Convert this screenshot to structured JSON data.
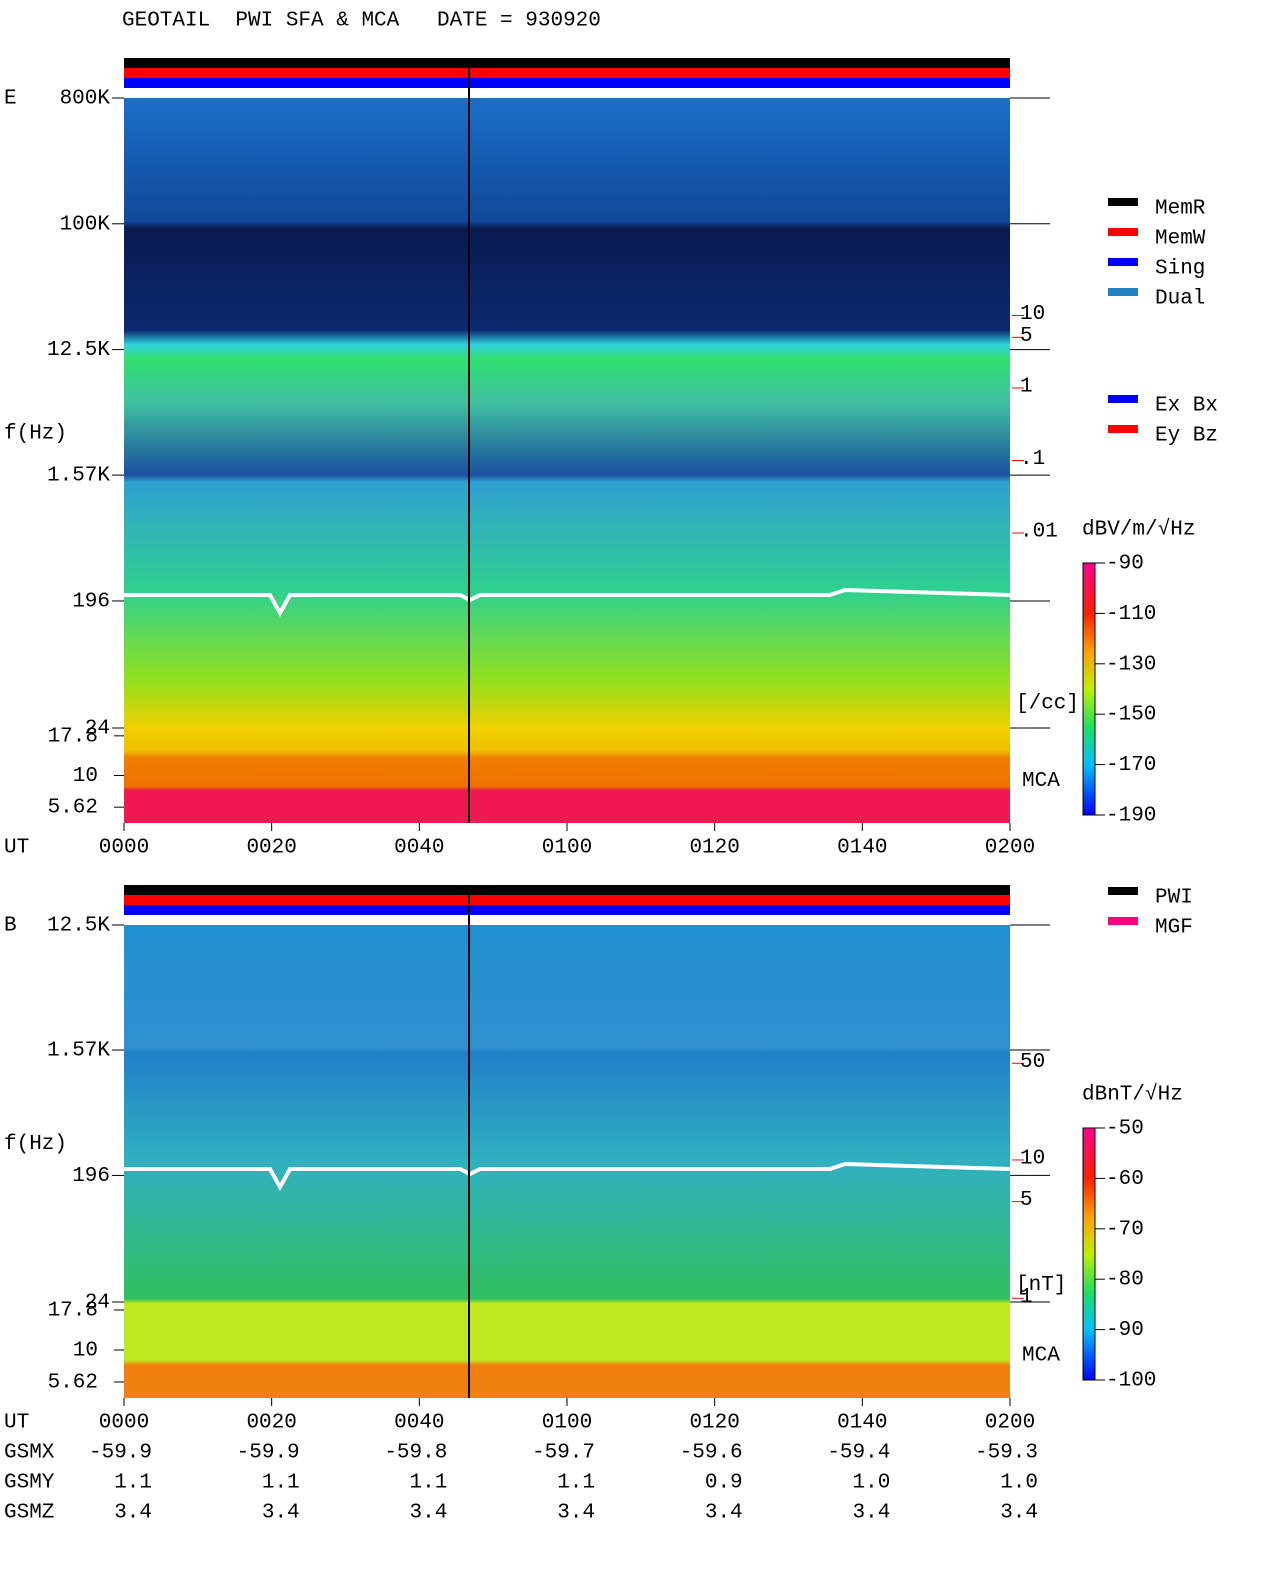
{
  "title": "GEOTAIL  PWI SFA & MCA   DATE = 930920",
  "chart_data": [
    {
      "type": "spectrogram",
      "panel_label": "E",
      "y_label": "f(Hz)",
      "x_label": "UT",
      "mca_label": "MCA",
      "xlim": [
        0,
        120
      ],
      "xticks": [
        {
          "value": 0,
          "label": "0000"
        },
        {
          "value": 20,
          "label": "0020"
        },
        {
          "value": 40,
          "label": "0040"
        },
        {
          "value": 60,
          "label": "0100"
        },
        {
          "value": 80,
          "label": "0120"
        },
        {
          "value": 100,
          "label": "0140"
        },
        {
          "value": 120,
          "label": "0200"
        }
      ],
      "log_y": true,
      "ylim": [
        24,
        800000
      ],
      "yticks": [
        {
          "value": 800000,
          "label": "800K"
        },
        {
          "value": 100000,
          "label": "100K"
        },
        {
          "value": 12500,
          "label": "12.5K"
        },
        {
          "value": 1570,
          "label": "1.57K"
        },
        196,
        24
      ],
      "mca_yticks": [
        17.8,
        10,
        5.62
      ],
      "y2lim": [
        1e-06,
        10000
      ],
      "y2_label": "[/cc]",
      "y2_color": "#ff0000",
      "y2ticks": [
        10,
        5,
        1,
        {
          "value": 0.1,
          "label": ".1"
        },
        {
          "value": 0.01,
          "label": ".01"
        }
      ],
      "colorbar": {
        "label": "dBV/m/√Hz",
        "clim": [
          -190,
          -90
        ],
        "ticks": [
          -90,
          -110,
          -130,
          -150,
          -170,
          -190
        ]
      },
      "legends": [
        [
          {
            "name": "MemR",
            "color": "#000000"
          },
          {
            "name": "MemW",
            "color": "#ff0000"
          },
          {
            "name": "Sing",
            "color": "#0000ff"
          },
          {
            "name": "Dual",
            "color": "#2080c0"
          }
        ],
        [
          {
            "name": "Ex Bx",
            "color": "#0000ff"
          },
          {
            "name": "Ey Bz",
            "color": "#ff0000"
          }
        ]
      ]
    },
    {
      "type": "spectrogram",
      "panel_label": "B",
      "y_label": "f(Hz)",
      "x_label": "UT",
      "mca_label": "MCA",
      "xlim": [
        0,
        120
      ],
      "xticks": [
        {
          "value": 0,
          "label": "0000"
        },
        {
          "value": 20,
          "label": "0020"
        },
        {
          "value": 40,
          "label": "0040"
        },
        {
          "value": 60,
          "label": "0100"
        },
        {
          "value": 80,
          "label": "0120"
        },
        {
          "value": 100,
          "label": "0140"
        },
        {
          "value": 120,
          "label": "0200"
        }
      ],
      "log_y": true,
      "ylim": [
        24,
        12500
      ],
      "yticks": [
        {
          "value": 12500,
          "label": "12.5K"
        },
        {
          "value": 1570,
          "label": "1.57K"
        },
        196,
        24
      ],
      "mca_yticks": [
        17.8,
        10,
        5.62
      ],
      "y2lim": [
        0.19,
        500
      ],
      "y2_label": "[nT]",
      "y2_color": "#ff0000",
      "y2ticks": [
        50,
        10,
        5,
        1
      ],
      "colorbar": {
        "label": "dBnT/√Hz",
        "clim": [
          -100,
          -50
        ],
        "ticks": [
          -50,
          -60,
          -70,
          -80,
          -90,
          -100
        ]
      },
      "legends": [
        [
          {
            "name": "PWI",
            "color": "#000000"
          },
          {
            "name": "MGF",
            "color": "#ff0080"
          }
        ]
      ],
      "orbit": {
        "labels": [
          "GSMX",
          "GSMY",
          "GSMZ"
        ],
        "rows": [
          [
            "-59.9",
            "-59.9",
            "-59.8",
            "-59.7",
            "-59.6",
            "-59.4",
            "-59.3"
          ],
          [
            "1.1",
            "1.1",
            "1.1",
            "1.1",
            "0.9",
            "1.0",
            "1.0"
          ],
          [
            "3.4",
            "3.4",
            "3.4",
            "3.4",
            "3.4",
            "3.4",
            "3.4"
          ]
        ]
      }
    }
  ]
}
